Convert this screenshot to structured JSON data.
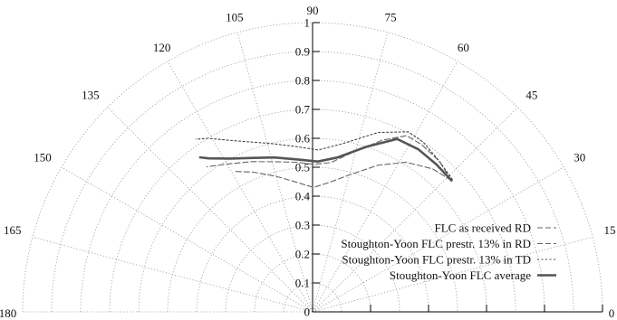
{
  "chart_data": {
    "type": "line",
    "coordinate_system": "polar",
    "title": "",
    "radial_axis": {
      "min": 0,
      "max": 1,
      "tick_labels": [
        "0",
        "0.1",
        "0.2",
        "0.3",
        "0.4",
        "0.5",
        "0.6",
        "0.7",
        "0.8",
        "0.9",
        "1"
      ]
    },
    "angular_axis": {
      "unit": "degrees",
      "range": [
        0,
        180
      ],
      "tick_labels": [
        "0",
        "15",
        "30",
        "45",
        "60",
        "75",
        "90",
        "105",
        "120",
        "135",
        "150",
        "165",
        "180"
      ]
    },
    "grid": true,
    "legend_position": "bottom-right",
    "series": [
      {
        "name": "FLC as received RD",
        "line_style": "dashed",
        "color": "#666666",
        "points": [
          {
            "angle": 43.5,
            "r": 0.66
          },
          {
            "angle": 50,
            "r": 0.645
          },
          {
            "angle": 58,
            "r": 0.61
          },
          {
            "angle": 66,
            "r": 0.555
          },
          {
            "angle": 75,
            "r": 0.49
          },
          {
            "angle": 83,
            "r": 0.45
          },
          {
            "angle": 89.5,
            "r": 0.43
          },
          {
            "angle": 98,
            "r": 0.455
          },
          {
            "angle": 105,
            "r": 0.485
          },
          {
            "angle": 113,
            "r": 0.525
          },
          {
            "angle": 119,
            "r": 0.555
          }
        ]
      },
      {
        "name": "Stoughton-Yoon FLC prestr. 13% in RD",
        "line_style": "dashed",
        "color": "#666666",
        "points": [
          {
            "angle": 43.5,
            "r": 0.66
          },
          {
            "angle": 50,
            "r": 0.68
          },
          {
            "angle": 57,
            "r": 0.69
          },
          {
            "angle": 62,
            "r": 0.69
          },
          {
            "angle": 68,
            "r": 0.64
          },
          {
            "angle": 77,
            "r": 0.56
          },
          {
            "angle": 83,
            "r": 0.52
          },
          {
            "angle": 89.5,
            "r": 0.51
          },
          {
            "angle": 96,
            "r": 0.52
          },
          {
            "angle": 104,
            "r": 0.535
          },
          {
            "angle": 112,
            "r": 0.56
          },
          {
            "angle": 120,
            "r": 0.59
          },
          {
            "angle": 126,
            "r": 0.62
          }
        ]
      },
      {
        "name": "Stoughton-Yoon FLC prestr. 13% in TD",
        "line_style": "dotted",
        "color": "#444444",
        "points": [
          {
            "angle": 43.5,
            "r": 0.665
          },
          {
            "angle": 50,
            "r": 0.68
          },
          {
            "angle": 57,
            "r": 0.7
          },
          {
            "angle": 62,
            "r": 0.705
          },
          {
            "angle": 70,
            "r": 0.66
          },
          {
            "angle": 80,
            "r": 0.59
          },
          {
            "angle": 88,
            "r": 0.56
          },
          {
            "angle": 96,
            "r": 0.575
          },
          {
            "angle": 104,
            "r": 0.6
          },
          {
            "angle": 110,
            "r": 0.625
          },
          {
            "angle": 116,
            "r": 0.66
          },
          {
            "angle": 121,
            "r": 0.7
          },
          {
            "angle": 124,
            "r": 0.72
          }
        ]
      },
      {
        "name": "Stoughton-Yoon FLC average",
        "line_style": "solid",
        "color": "#555555",
        "points": [
          {
            "angle": 43.5,
            "r": 0.66
          },
          {
            "angle": 50,
            "r": 0.665
          },
          {
            "angle": 57,
            "r": 0.67
          },
          {
            "angle": 64,
            "r": 0.665
          },
          {
            "angle": 72,
            "r": 0.6
          },
          {
            "angle": 81,
            "r": 0.54
          },
          {
            "angle": 88,
            "r": 0.52
          },
          {
            "angle": 96,
            "r": 0.53
          },
          {
            "angle": 104,
            "r": 0.55
          },
          {
            "angle": 111,
            "r": 0.57
          },
          {
            "angle": 118,
            "r": 0.6
          },
          {
            "angle": 124,
            "r": 0.64
          },
          {
            "angle": 126,
            "r": 0.66
          }
        ]
      }
    ]
  }
}
